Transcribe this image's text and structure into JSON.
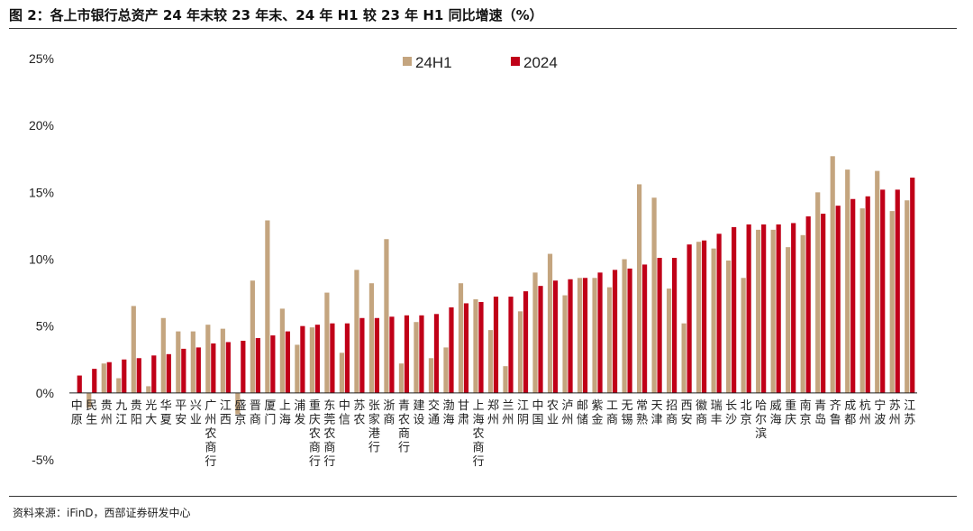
{
  "figure": {
    "title": "图 2：各上市银行总资产 24 年末较 23 年末、24 年 H1 较 23 年 H1 同比增速（%）",
    "source": "资料来源：iFinD，西部证券研发中心"
  },
  "chart_data": {
    "type": "bar",
    "title": "",
    "xlabel": "",
    "ylabel": "",
    "ylim": [
      -5,
      25
    ],
    "yticks": [
      "-5%",
      "0%",
      "5%",
      "10%",
      "15%",
      "20%",
      "25%"
    ],
    "legend_position": "top-center",
    "categories": [
      "中原",
      "民生",
      "贵州",
      "九江",
      "贵阳",
      "光大",
      "华夏",
      "平安",
      "兴业",
      "广州农商行",
      "江西",
      "盛京",
      "晋商",
      "厦门",
      "上海",
      "浦发",
      "重庆农商行",
      "东莞农商行",
      "中信",
      "苏农",
      "张家港行",
      "浙商",
      "青农商行",
      "建设",
      "交通",
      "渤海",
      "甘肃",
      "上海农商行",
      "郑州",
      "兰州",
      "江阴",
      "中国",
      "农业",
      "泸州",
      "邮储",
      "紫金",
      "工商",
      "无锡",
      "常熟",
      "天津",
      "招商",
      "西安",
      "徽商",
      "瑞丰",
      "长沙",
      "北京",
      "哈尔滨",
      "威海",
      "重庆",
      "南京",
      "青岛",
      "齐鲁",
      "成都",
      "杭州",
      "宁波",
      "苏州",
      "江苏"
    ],
    "series": [
      {
        "name": "24H1",
        "color": "#c4a57f",
        "values": [
          0.0,
          -1.1,
          2.2,
          1.1,
          6.5,
          0.5,
          5.6,
          4.6,
          4.6,
          5.1,
          4.8,
          -1.6,
          8.4,
          12.9,
          6.3,
          3.6,
          4.9,
          7.5,
          3.0,
          9.2,
          8.2,
          11.5,
          2.2,
          5.3,
          2.6,
          3.4,
          8.2,
          7.0,
          4.7,
          2.0,
          6.1,
          9.0,
          10.4,
          7.3,
          8.6,
          8.6,
          7.9,
          10.0,
          15.6,
          14.6,
          7.8,
          5.2,
          11.3,
          10.8,
          9.9,
          8.6,
          12.2,
          12.2,
          10.9,
          11.8,
          15.0,
          17.7,
          16.7,
          13.8,
          16.6,
          13.6,
          14.4
        ]
      },
      {
        "name": "2024",
        "color": "#c00018",
        "values": [
          1.3,
          1.8,
          2.3,
          2.5,
          2.6,
          2.8,
          2.9,
          3.3,
          3.4,
          3.7,
          3.8,
          3.9,
          4.1,
          4.3,
          4.6,
          5.0,
          5.1,
          5.2,
          5.2,
          5.6,
          5.6,
          5.7,
          5.8,
          5.8,
          5.9,
          6.4,
          6.7,
          6.8,
          7.2,
          7.2,
          7.6,
          8.0,
          8.4,
          8.5,
          8.6,
          9.0,
          9.2,
          9.3,
          9.6,
          10.1,
          10.1,
          11.1,
          11.4,
          11.9,
          12.4,
          12.6,
          12.6,
          12.6,
          12.7,
          13.2,
          13.4,
          14.0,
          14.5,
          14.7,
          15.2,
          15.2,
          16.1
        ]
      }
    ]
  },
  "icons": {
    "legend_swatch": "square"
  }
}
